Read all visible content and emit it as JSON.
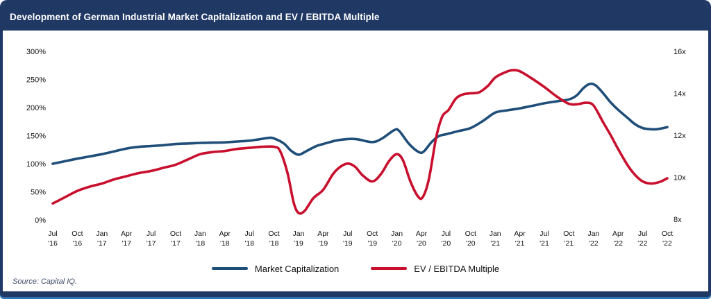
{
  "header": {
    "title": "Development of German Industrial Market Capitalization and EV / EBITDA Multiple"
  },
  "source_note": "Source: Capital IQ.",
  "colors": {
    "navy_header": "#1F3864",
    "bottom_accent_blue": "#2E74B5",
    "market_cap_blue": "#1F4E79",
    "ev_ebitda_red": "#C8102E"
  },
  "chart_data": {
    "type": "line",
    "title": "Development of German Industrial Market Capitalization and EV / EBITDA Multiple",
    "grid": false,
    "legend_position": "bottom",
    "x_unit": "quarter_index_from_first_tick",
    "x_ticks": [
      [
        "Jul",
        "'16"
      ],
      [
        "Oct",
        "'16"
      ],
      [
        "Jan",
        "'17"
      ],
      [
        "Apr",
        "'17"
      ],
      [
        "Jul",
        "'17"
      ],
      [
        "Oct",
        "'17"
      ],
      [
        "Jan",
        "'18"
      ],
      [
        "Apr",
        "'18"
      ],
      [
        "Jul",
        "'18"
      ],
      [
        "Oct",
        "'18"
      ],
      [
        "Jan",
        "'19"
      ],
      [
        "Apr",
        "'19"
      ],
      [
        "Jul",
        "'19"
      ],
      [
        "Oct",
        "'19"
      ],
      [
        "Jan",
        "'20"
      ],
      [
        "Apr",
        "'20"
      ],
      [
        "Jul",
        "'20"
      ],
      [
        "Oct",
        "'20"
      ],
      [
        "Jan",
        "'21"
      ],
      [
        "Apr",
        "'21"
      ],
      [
        "Jul",
        "'21"
      ],
      [
        "Oct",
        "'21"
      ],
      [
        "Jan",
        "'22"
      ],
      [
        "Apr",
        "'22"
      ],
      [
        "Jul",
        "'22"
      ],
      [
        "Oct",
        "'22"
      ]
    ],
    "left_axis": {
      "unit": "%",
      "min": 0,
      "max": 300,
      "tick_labels": [
        "300%",
        "250%",
        "200%",
        "150%",
        "100%",
        "50%",
        "0%"
      ]
    },
    "right_axis": {
      "unit": "x",
      "min": 8,
      "max": 16,
      "tick_labels": [
        "16x",
        "14x",
        "12x",
        "10x",
        "8x"
      ]
    },
    "series": [
      {
        "name": "Market Capitalization",
        "axis": "left",
        "color": "#1F4E79",
        "quarterly_values_pct": [
          100,
          109,
          117,
          127,
          131.5,
          135,
          137,
          138,
          141,
          145,
          116,
          135,
          144,
          138.5,
          159,
          121,
          152.5,
          163.5,
          191,
          198.5,
          207.5,
          214.5,
          240,
          196,
          163.5,
          165
        ],
        "points": [
          [
            0,
            100
          ],
          [
            0.5,
            104.5
          ],
          [
            1,
            109
          ],
          [
            1.5,
            113
          ],
          [
            2,
            117
          ],
          [
            2.5,
            122
          ],
          [
            3,
            127
          ],
          [
            3.5,
            130
          ],
          [
            4,
            131.5
          ],
          [
            4.5,
            133
          ],
          [
            5,
            135
          ],
          [
            5.5,
            136
          ],
          [
            6,
            137
          ],
          [
            6.5,
            137.5
          ],
          [
            7,
            138
          ],
          [
            7.5,
            139.5
          ],
          [
            8,
            141
          ],
          [
            8.4,
            143.5
          ],
          [
            8.8,
            146
          ],
          [
            9,
            145
          ],
          [
            9.4,
            136
          ],
          [
            9.7,
            123
          ],
          [
            10,
            116
          ],
          [
            10.3,
            122
          ],
          [
            10.7,
            131
          ],
          [
            11,
            135
          ],
          [
            11.5,
            141
          ],
          [
            12,
            144
          ],
          [
            12.4,
            143.5
          ],
          [
            13,
            138.5
          ],
          [
            13.4,
            145
          ],
          [
            13.9,
            160
          ],
          [
            14.1,
            158
          ],
          [
            14.5,
            135
          ],
          [
            14.9,
            120.5
          ],
          [
            15.1,
            122
          ],
          [
            15.4,
            138
          ],
          [
            15.7,
            149
          ],
          [
            16,
            152.5
          ],
          [
            16.5,
            158
          ],
          [
            17,
            163.5
          ],
          [
            17.5,
            176
          ],
          [
            18,
            191
          ],
          [
            18.5,
            195
          ],
          [
            19,
            198.5
          ],
          [
            19.5,
            203
          ],
          [
            20,
            207.5
          ],
          [
            20.5,
            211
          ],
          [
            21,
            214.5
          ],
          [
            21.3,
            221
          ],
          [
            21.6,
            235
          ],
          [
            21.85,
            242
          ],
          [
            22.1,
            239
          ],
          [
            22.4,
            225
          ],
          [
            22.7,
            209
          ],
          [
            23,
            196
          ],
          [
            23.4,
            181
          ],
          [
            23.7,
            170
          ],
          [
            24,
            163.5
          ],
          [
            24.3,
            161.5
          ],
          [
            24.6,
            161.5
          ],
          [
            25,
            165
          ]
        ]
      },
      {
        "name": "EV / EBITDA Multiple",
        "axis": "right",
        "color": "#C8102E",
        "quarterly_values_x": [
          8.75,
          9.35,
          9.7,
          10.05,
          10.3,
          10.6,
          11.1,
          11.25,
          11.4,
          11.45,
          8.3,
          9.4,
          10.65,
          9.8,
          11.1,
          9.05,
          13.1,
          14.0,
          14.75,
          15.05,
          14.3,
          13.5,
          13.4,
          11.35,
          9.8,
          9.95
        ],
        "points": [
          [
            0,
            8.75
          ],
          [
            0.5,
            9.05
          ],
          [
            1,
            9.35
          ],
          [
            1.5,
            9.55
          ],
          [
            2,
            9.7
          ],
          [
            2.5,
            9.9
          ],
          [
            3,
            10.05
          ],
          [
            3.5,
            10.2
          ],
          [
            4,
            10.3
          ],
          [
            4.5,
            10.45
          ],
          [
            5,
            10.6
          ],
          [
            5.5,
            10.85
          ],
          [
            6,
            11.1
          ],
          [
            6.5,
            11.2
          ],
          [
            7,
            11.25
          ],
          [
            7.5,
            11.35
          ],
          [
            8,
            11.4
          ],
          [
            8.5,
            11.45
          ],
          [
            9,
            11.45
          ],
          [
            9.25,
            11.25
          ],
          [
            9.55,
            10.2
          ],
          [
            9.8,
            8.8
          ],
          [
            10,
            8.3
          ],
          [
            10.25,
            8.4
          ],
          [
            10.6,
            9.0
          ],
          [
            11,
            9.4
          ],
          [
            11.4,
            10.15
          ],
          [
            11.7,
            10.5
          ],
          [
            12,
            10.65
          ],
          [
            12.3,
            10.5
          ],
          [
            12.6,
            10.1
          ],
          [
            13,
            9.8
          ],
          [
            13.35,
            10.15
          ],
          [
            13.7,
            10.8
          ],
          [
            14,
            11.1
          ],
          [
            14.25,
            10.8
          ],
          [
            14.55,
            9.8
          ],
          [
            14.85,
            9.1
          ],
          [
            15.05,
            9.05
          ],
          [
            15.3,
            9.9
          ],
          [
            15.6,
            11.9
          ],
          [
            15.85,
            12.9
          ],
          [
            16.1,
            13.2
          ],
          [
            16.4,
            13.75
          ],
          [
            16.7,
            13.95
          ],
          [
            17,
            14.0
          ],
          [
            17.35,
            14.05
          ],
          [
            17.7,
            14.35
          ],
          [
            18,
            14.75
          ],
          [
            18.4,
            15.0
          ],
          [
            18.7,
            15.1
          ],
          [
            19,
            15.05
          ],
          [
            19.5,
            14.7
          ],
          [
            20,
            14.3
          ],
          [
            20.5,
            13.85
          ],
          [
            21,
            13.5
          ],
          [
            21.35,
            13.48
          ],
          [
            21.7,
            13.55
          ],
          [
            22,
            13.42
          ],
          [
            22.4,
            12.6
          ],
          [
            22.7,
            12.0
          ],
          [
            23,
            11.35
          ],
          [
            23.4,
            10.55
          ],
          [
            23.7,
            10.1
          ],
          [
            24,
            9.8
          ],
          [
            24.35,
            9.7
          ],
          [
            24.7,
            9.78
          ],
          [
            25,
            9.95
          ]
        ]
      }
    ]
  }
}
